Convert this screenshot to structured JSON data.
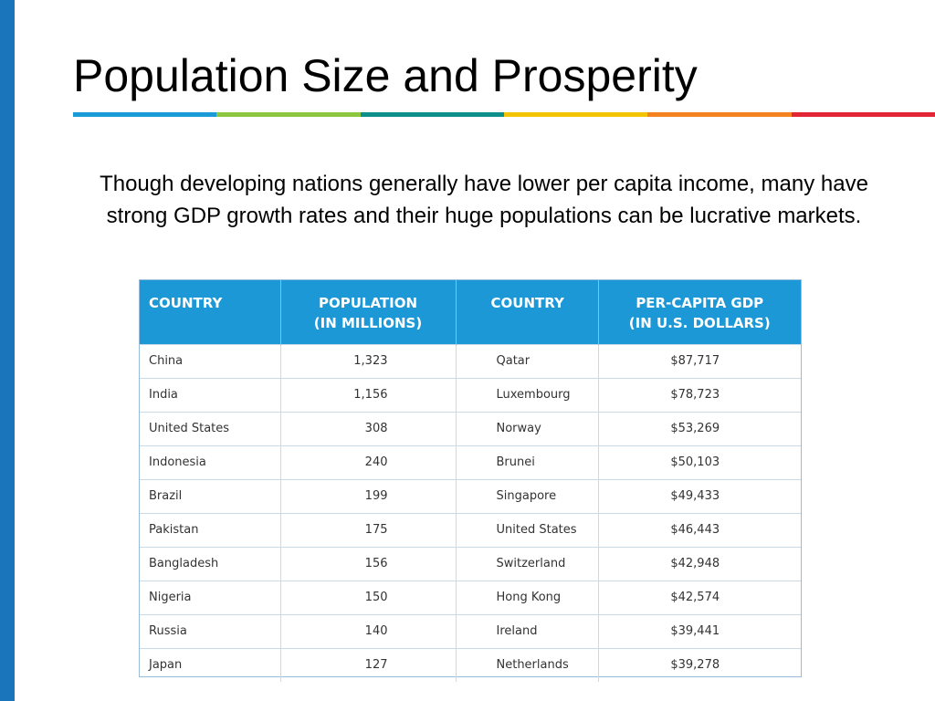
{
  "slide": {
    "title": "Population Size and Prosperity",
    "intro": "Though developing nations generally have lower per capita income, many have strong GDP growth rates and their huge populations can be lucrative markets.",
    "accent_colors": [
      "#1a9ad7",
      "#8dc63f",
      "#0d8f8a",
      "#f2c500",
      "#f58220",
      "#e32636"
    ],
    "sidebar_color": "#1b75bb"
  },
  "table": {
    "headers": {
      "country_1": "COUNTRY",
      "population": [
        "POPULATION",
        "(IN MILLIONS)"
      ],
      "country_2": "COUNTRY",
      "gdp": [
        "PER-CAPITA GDP",
        "(IN U.S. DOLLARS)"
      ]
    },
    "header_color": "#1d98d6",
    "rows": [
      {
        "country": "China",
        "population": "1,323",
        "country2": "Qatar",
        "gdp": "$87,717"
      },
      {
        "country": "India",
        "population": "1,156",
        "country2": "Luxembourg",
        "gdp": "$78,723"
      },
      {
        "country": "United States",
        "population": "308",
        "country2": "Norway",
        "gdp": "$53,269"
      },
      {
        "country": "Indonesia",
        "population": "240",
        "country2": "Brunei",
        "gdp": "$50,103"
      },
      {
        "country": "Brazil",
        "population": "199",
        "country2": "Singapore",
        "gdp": "$49,433"
      },
      {
        "country": "Pakistan",
        "population": "175",
        "country2": "United States",
        "gdp": "$46,443"
      },
      {
        "country": "Bangladesh",
        "population": "156",
        "country2": "Switzerland",
        "gdp": "$42,948"
      },
      {
        "country": "Nigeria",
        "population": "150",
        "country2": "Hong Kong",
        "gdp": "$42,574"
      },
      {
        "country": "Russia",
        "population": "140",
        "country2": "Ireland",
        "gdp": "$39,441"
      },
      {
        "country": "Japan",
        "population": "127",
        "country2": "Netherlands",
        "gdp": "$39,278"
      }
    ]
  }
}
